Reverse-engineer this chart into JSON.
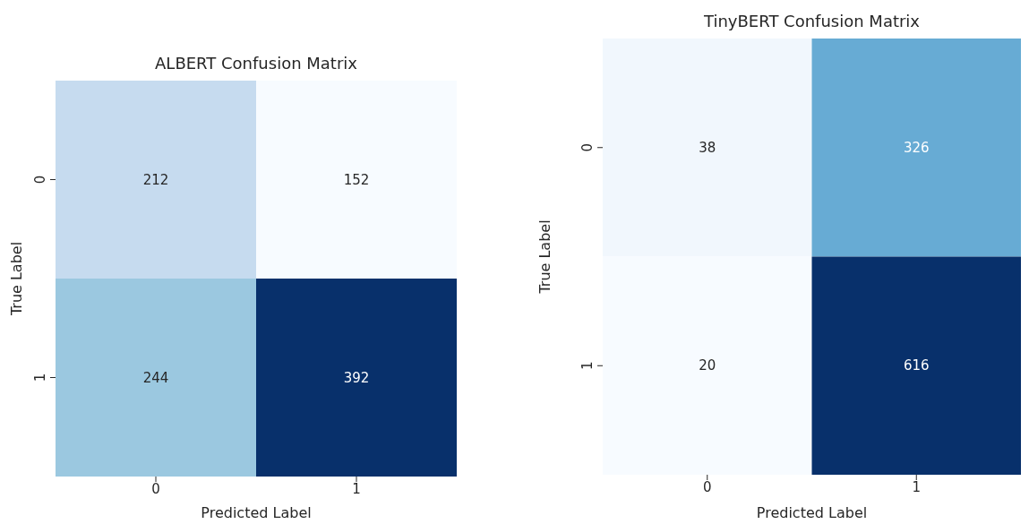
{
  "chart_data": [
    {
      "type": "heatmap",
      "title": "ALBERT Confusion Matrix",
      "xlabel": "Predicted Label",
      "ylabel": "True Label",
      "categories": [
        "0",
        "1"
      ],
      "y_categories": [
        "0",
        "1"
      ],
      "cells": [
        [
          212,
          152
        ],
        [
          244,
          392
        ]
      ],
      "data_labels": true
    },
    {
      "type": "heatmap",
      "title": "TinyBERT Confusion Matrix",
      "xlabel": "Predicted Label",
      "ylabel": "True Label",
      "categories": [
        "0",
        "1"
      ],
      "y_categories": [
        "0",
        "1"
      ],
      "cells": [
        [
          38,
          326
        ],
        [
          20,
          616
        ]
      ],
      "data_labels": true
    }
  ]
}
